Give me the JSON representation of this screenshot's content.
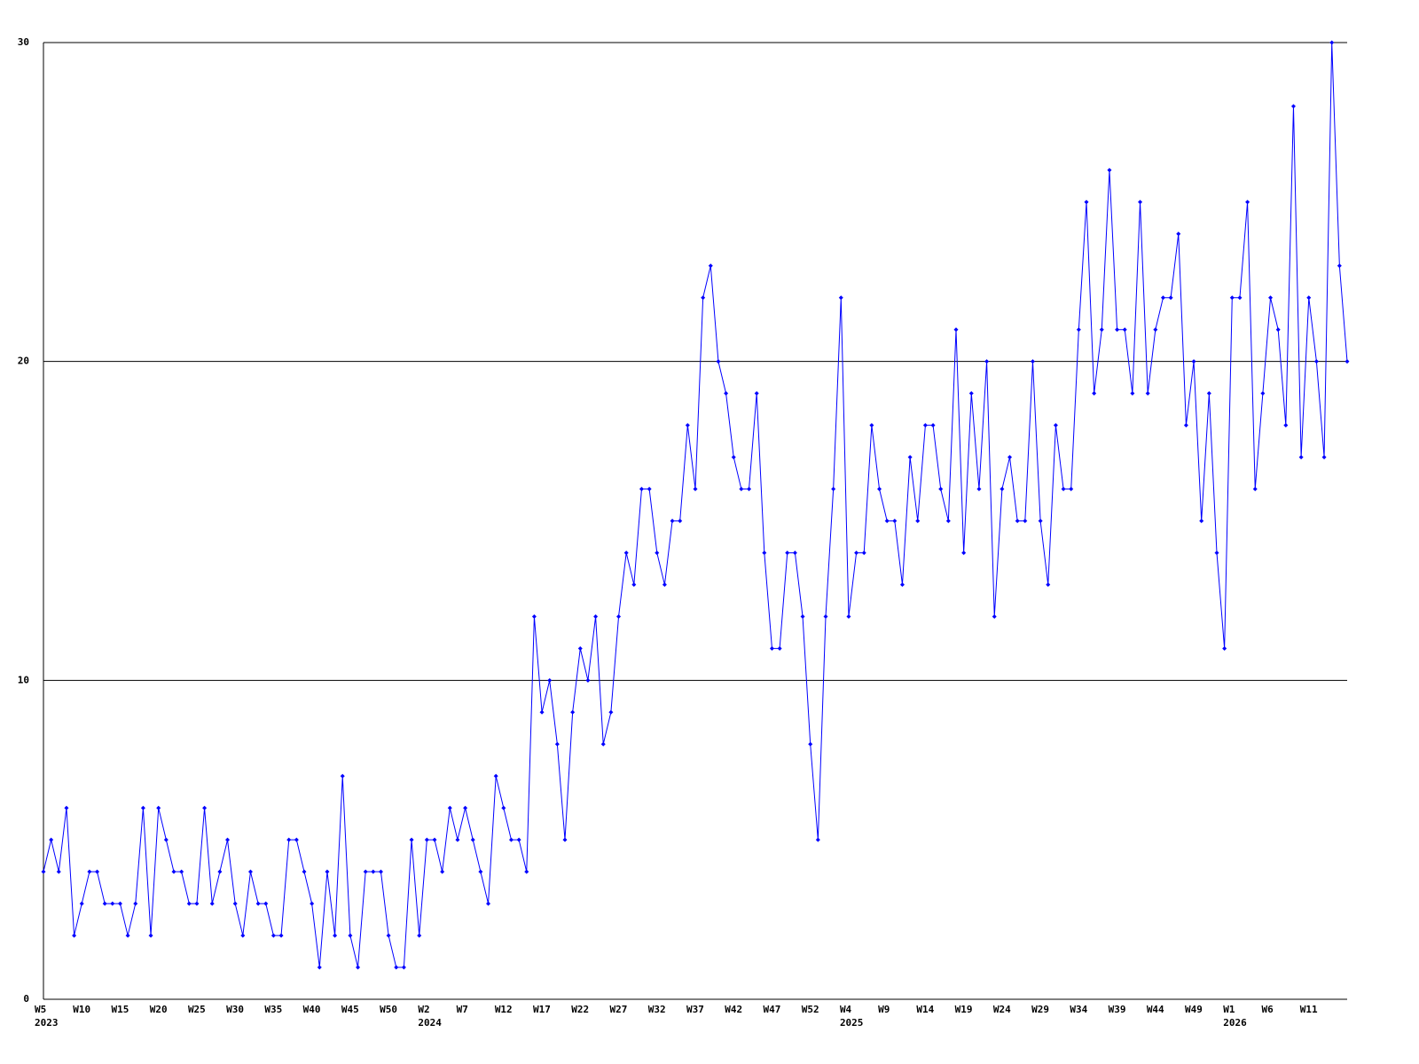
{
  "chart_data": {
    "type": "line",
    "categories": [
      "W5",
      null,
      null,
      null,
      null,
      "W10",
      null,
      null,
      null,
      null,
      "W15",
      null,
      null,
      null,
      null,
      "W20",
      null,
      null,
      null,
      null,
      "W25",
      null,
      null,
      null,
      null,
      "W30",
      null,
      null,
      null,
      null,
      "W35",
      null,
      null,
      null,
      null,
      "W40",
      null,
      null,
      null,
      null,
      "W45",
      null,
      null,
      null,
      null,
      "W50",
      null,
      null,
      null,
      null,
      "W2",
      null,
      null,
      null,
      null,
      "W7",
      null,
      null,
      null,
      null,
      "W12",
      null,
      null,
      null,
      null,
      "W17",
      null,
      null,
      null,
      null,
      "W22",
      null,
      null,
      null,
      null,
      "W27",
      null,
      null,
      null,
      null,
      "W32",
      null,
      null,
      null,
      null,
      "W37",
      null,
      null,
      null,
      null,
      "W42",
      null,
      null,
      null,
      null,
      "W47",
      null,
      null,
      null,
      null,
      "W52",
      null,
      null,
      null,
      null,
      "W4",
      null,
      null,
      null,
      null,
      "W9",
      null,
      null,
      null,
      null,
      "W14",
      null,
      null,
      null,
      null,
      "W19",
      null,
      null,
      null,
      null,
      "W24",
      null,
      null,
      null,
      null,
      "W29",
      null,
      null,
      null,
      null,
      "W34",
      null,
      null,
      null,
      null,
      "W39",
      null,
      null,
      null,
      null,
      "W44",
      null,
      null,
      null,
      null,
      "W49",
      null,
      null,
      null,
      null,
      "W1",
      null,
      null,
      null,
      null,
      "W6",
      null,
      null,
      null,
      null,
      "W11",
      null,
      null,
      null,
      null,
      null
    ],
    "category_years": [
      "2023",
      null,
      null,
      null,
      null,
      null,
      null,
      null,
      null,
      null,
      null,
      null,
      null,
      null,
      null,
      null,
      null,
      null,
      null,
      null,
      null,
      null,
      null,
      null,
      null,
      null,
      null,
      null,
      null,
      null,
      null,
      null,
      null,
      null,
      null,
      null,
      null,
      null,
      null,
      null,
      null,
      null,
      null,
      null,
      null,
      null,
      null,
      null,
      null,
      null,
      "2024",
      null,
      null,
      null,
      null,
      null,
      null,
      null,
      null,
      null,
      null,
      null,
      null,
      null,
      null,
      null,
      null,
      null,
      null,
      null,
      null,
      null,
      null,
      null,
      null,
      null,
      null,
      null,
      null,
      null,
      null,
      null,
      null,
      null,
      null,
      null,
      null,
      null,
      null,
      null,
      null,
      null,
      null,
      null,
      null,
      null,
      null,
      null,
      null,
      null,
      null,
      null,
      null,
      null,
      null,
      "2025",
      null,
      null,
      null,
      null,
      null,
      null,
      null,
      null,
      null,
      null,
      null,
      null,
      null,
      null,
      null,
      null,
      null,
      null,
      null,
      null,
      null,
      null,
      null,
      null,
      null,
      null,
      null,
      null,
      null,
      null,
      null,
      null,
      null,
      null,
      null,
      null,
      null,
      null,
      null,
      null,
      null,
      null,
      null,
      null,
      null,
      null,
      null,
      null,
      null,
      "2026",
      null,
      null,
      null,
      null,
      null,
      null,
      null,
      null,
      null,
      null,
      null,
      null,
      null,
      null,
      null
    ],
    "series": [
      {
        "color": "#0000ff",
        "values": [
          4,
          5,
          4,
          6,
          2,
          3,
          4,
          4,
          3,
          3,
          3,
          2,
          3,
          6,
          2,
          6,
          5,
          4,
          4,
          3,
          3,
          6,
          3,
          4,
          5,
          3,
          2,
          4,
          3,
          3,
          2,
          2,
          5,
          5,
          4,
          3,
          1,
          4,
          2,
          7,
          2,
          1,
          4,
          4,
          4,
          2,
          1,
          1,
          5,
          2,
          5,
          5,
          4,
          6,
          5,
          6,
          5,
          4,
          3,
          7,
          6,
          5,
          5,
          4,
          12,
          9,
          10,
          8,
          5,
          9,
          11,
          10,
          12,
          8,
          9,
          12,
          14,
          13,
          16,
          16,
          14,
          13,
          15,
          15,
          18,
          16,
          22,
          23,
          20,
          19,
          17,
          16,
          16,
          19,
          14,
          11,
          11,
          14,
          14,
          12,
          8,
          5,
          12,
          16,
          22,
          12,
          14,
          14,
          18,
          16,
          15,
          15,
          13,
          17,
          15,
          18,
          18,
          16,
          15,
          21,
          14,
          19,
          16,
          20,
          12,
          16,
          17,
          15,
          15,
          20,
          15,
          13,
          18,
          16,
          16,
          21,
          25,
          19,
          21,
          26,
          21,
          21,
          19,
          25,
          19,
          21,
          22,
          22,
          24,
          18,
          20,
          15,
          19,
          14,
          11,
          22,
          22,
          25,
          16,
          19,
          22,
          21,
          18,
          28,
          17,
          22,
          20,
          17,
          30,
          23,
          20
        ]
      }
    ],
    "ylim": [
      0,
      30
    ],
    "yticks": [
      0,
      10,
      20,
      30
    ],
    "grid": true
  }
}
